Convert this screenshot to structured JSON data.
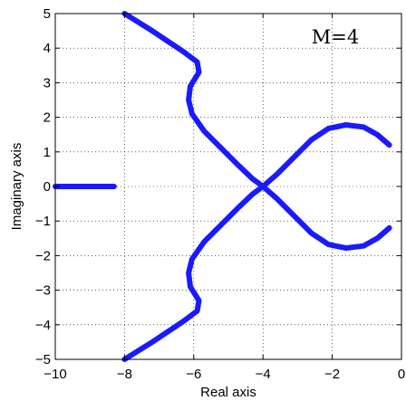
{
  "chart_data": {
    "type": "line",
    "title": "",
    "annotation": "M=4",
    "xlabel": "Real axis",
    "ylabel": "Imaginary axis",
    "xlim": [
      -10,
      0
    ],
    "ylim": [
      -5,
      5
    ],
    "grid": true,
    "x_ticks": [
      {
        "value": -10,
        "label": "−10"
      },
      {
        "value": -8,
        "label": "−8"
      },
      {
        "value": -6,
        "label": "−6"
      },
      {
        "value": -4,
        "label": "−4"
      },
      {
        "value": -2,
        "label": "−2"
      },
      {
        "value": 0,
        "label": "0"
      }
    ],
    "y_ticks": [
      {
        "value": -5,
        "label": "−5"
      },
      {
        "value": -4,
        "label": "−4"
      },
      {
        "value": -3,
        "label": "−3"
      },
      {
        "value": -2,
        "label": "−2"
      },
      {
        "value": -1,
        "label": "−1"
      },
      {
        "value": 0,
        "label": "0"
      },
      {
        "value": 1,
        "label": "1"
      },
      {
        "value": 2,
        "label": "2"
      },
      {
        "value": 3,
        "label": "3"
      },
      {
        "value": 4,
        "label": "4"
      },
      {
        "value": 5,
        "label": "5"
      }
    ],
    "series_color": "#1a1aff",
    "series": [
      {
        "values": [
          [
            -10.0,
            0.0
          ],
          [
            -9.0,
            0.0
          ],
          [
            -8.3,
            0.0
          ]
        ]
      },
      {
        "values": [
          [
            -8.0,
            5.0
          ],
          [
            -7.2,
            4.5
          ],
          [
            -6.3,
            3.9
          ],
          [
            -5.9,
            3.6
          ],
          [
            -5.85,
            3.3
          ],
          [
            -6.1,
            2.9
          ],
          [
            -6.15,
            2.5
          ],
          [
            -6.05,
            2.1
          ],
          [
            -5.7,
            1.6
          ],
          [
            -5.2,
            1.1
          ],
          [
            -4.7,
            0.6
          ],
          [
            -4.3,
            0.22
          ],
          [
            -4.0,
            0.0
          ]
        ]
      },
      {
        "values": [
          [
            -8.0,
            -5.0
          ],
          [
            -7.2,
            -4.5
          ],
          [
            -6.3,
            -3.9
          ],
          [
            -5.9,
            -3.6
          ],
          [
            -5.85,
            -3.3
          ],
          [
            -6.1,
            -2.9
          ],
          [
            -6.15,
            -2.5
          ],
          [
            -6.05,
            -2.1
          ],
          [
            -5.7,
            -1.6
          ],
          [
            -5.2,
            -1.1
          ],
          [
            -4.7,
            -0.6
          ],
          [
            -4.3,
            -0.22
          ],
          [
            -4.0,
            0.0
          ]
        ]
      },
      {
        "values": [
          [
            -4.0,
            0.0
          ],
          [
            -3.6,
            0.35
          ],
          [
            -3.1,
            0.85
          ],
          [
            -2.6,
            1.35
          ],
          [
            -2.1,
            1.68
          ],
          [
            -1.6,
            1.78
          ],
          [
            -1.1,
            1.72
          ],
          [
            -0.7,
            1.5
          ],
          [
            -0.35,
            1.2
          ]
        ]
      },
      {
        "values": [
          [
            -4.0,
            0.0
          ],
          [
            -3.6,
            -0.35
          ],
          [
            -3.1,
            -0.85
          ],
          [
            -2.6,
            -1.35
          ],
          [
            -2.1,
            -1.68
          ],
          [
            -1.6,
            -1.78
          ],
          [
            -1.1,
            -1.72
          ],
          [
            -0.7,
            -1.5
          ],
          [
            -0.35,
            -1.2
          ]
        ]
      }
    ]
  }
}
